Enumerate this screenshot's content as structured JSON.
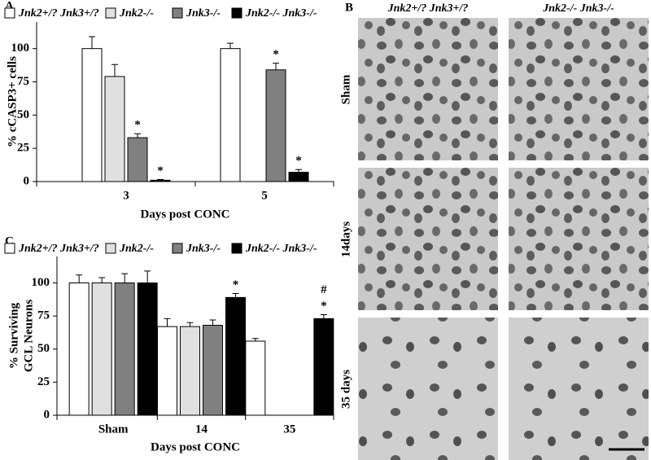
{
  "chart_data": [
    {
      "type": "bar",
      "panel_label": "A",
      "ylabel": [
        "% cCASP3+ cells"
      ],
      "xlabel": "Days post CONC",
      "categories": [
        "3",
        "5"
      ],
      "ylim": [
        0,
        120
      ],
      "yticks": [
        0,
        25,
        50,
        75,
        100
      ],
      "series": [
        {
          "name": "Jnk2+/? Jnk3+/?",
          "color": "#ffffff",
          "values": [
            100,
            100
          ],
          "errors": [
            9,
            4
          ],
          "annotations": [
            null,
            null
          ]
        },
        {
          "name": "Jnk2-/-",
          "color": "#e0e0e0",
          "values": [
            79,
            null
          ],
          "errors": [
            9,
            null
          ],
          "annotations": [
            null,
            null
          ]
        },
        {
          "name": "Jnk3-/-",
          "color": "#808080",
          "values": [
            33,
            84
          ],
          "errors": [
            3,
            5
          ],
          "annotations": [
            [
              "*"
            ],
            [
              "*"
            ]
          ]
        },
        {
          "name": "Jnk2-/- Jnk3-/-",
          "color": "#000000",
          "values": [
            1,
            7
          ],
          "errors": [
            0.5,
            2
          ],
          "annotations": [
            [
              "*"
            ],
            [
              "*"
            ]
          ]
        }
      ]
    },
    {
      "type": "bar",
      "panel_label": "C",
      "ylabel": [
        "% Surviving",
        "GCL Neurons"
      ],
      "xlabel": "Days post CONC",
      "categories": [
        "Sham",
        "14",
        "35"
      ],
      "ylim": [
        0,
        120
      ],
      "yticks": [
        0,
        25,
        50,
        75,
        100
      ],
      "series": [
        {
          "name": "Jnk2+/? Jnk3+/?",
          "color": "#ffffff",
          "values": [
            100,
            67,
            56
          ],
          "errors": [
            6,
            6,
            2
          ],
          "annotations": [
            null,
            null,
            null
          ]
        },
        {
          "name": "Jnk2-/-",
          "color": "#e0e0e0",
          "values": [
            100,
            67,
            null
          ],
          "errors": [
            4,
            3,
            null
          ],
          "annotations": [
            null,
            null,
            null
          ]
        },
        {
          "name": "Jnk3-/-",
          "color": "#808080",
          "values": [
            100,
            68,
            null
          ],
          "errors": [
            7,
            4,
            null
          ],
          "annotations": [
            null,
            null,
            null
          ]
        },
        {
          "name": "Jnk2-/- Jnk3-/-",
          "color": "#000000",
          "values": [
            100,
            89,
            73
          ],
          "errors": [
            9,
            3,
            3
          ],
          "annotations": [
            null,
            [
              "*"
            ],
            [
              "#",
              "*"
            ]
          ]
        }
      ]
    }
  ],
  "panel_b": {
    "label": "B",
    "columns": [
      "Jnk2+/? Jnk3+/?",
      "Jnk2-/- Jnk3-/-"
    ],
    "rows": [
      "Sham",
      "14days",
      "35 days"
    ]
  }
}
